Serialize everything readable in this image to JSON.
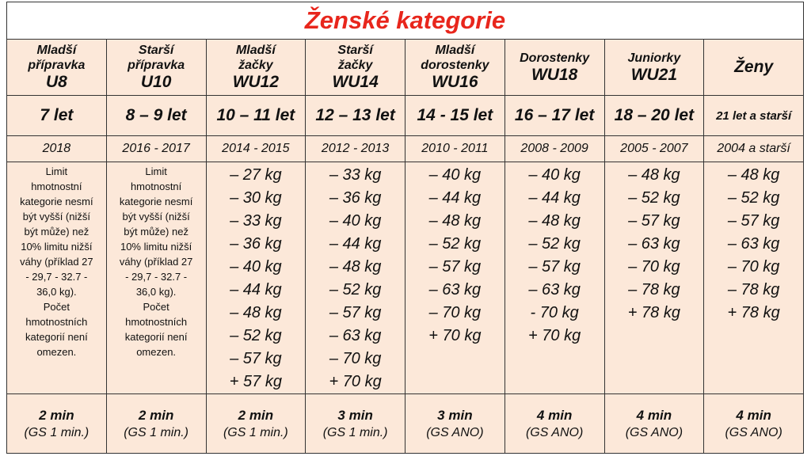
{
  "title": "Ženské kategorie",
  "columns": [
    {
      "header": [
        "Mladší",
        "přípravka",
        "U8"
      ],
      "age": "7 let",
      "years": "2018",
      "note": [
        "Limit",
        "hmotnostní",
        "kategorie nesmí",
        "být vyšší (nižší",
        "být může) než",
        "10% limitu nižší",
        "váhy (příklad 27",
        "- 29,7 - 32.7 -",
        "36,0 kg).",
        "Počet",
        "hmotnostních",
        "kategorií není",
        "omezen."
      ],
      "time": "2 min",
      "gs": "(GS 1 min.)"
    },
    {
      "header": [
        "Starší",
        "přípravka",
        "U10"
      ],
      "age": "8 – 9 let",
      "years": "2016 - 2017",
      "note": [
        "Limit",
        "hmotnostní",
        "kategorie nesmí",
        "být vyšší (nižší",
        "být může) než",
        "10% limitu nižší",
        "váhy (příklad 27",
        "- 29,7 - 32.7 -",
        "36,0 kg).",
        "Počet",
        "hmotnostních",
        "kategorií není",
        "omezen."
      ],
      "time": "2 min",
      "gs": "(GS 1 min.)"
    },
    {
      "header": [
        "Mladší",
        "žačky",
        "WU12"
      ],
      "age": "10 – 11 let",
      "years": "2014 - 2015",
      "weights": [
        "– 27 kg",
        "– 30 kg",
        "– 33 kg",
        "– 36 kg",
        "– 40 kg",
        "– 44 kg",
        "– 48 kg",
        "– 52 kg",
        "– 57 kg",
        "+ 57 kg"
      ],
      "time": "2 min",
      "gs": "(GS 1 min.)"
    },
    {
      "header": [
        "Starší",
        "žačky",
        "WU14"
      ],
      "age": "12 – 13 let",
      "years": "2012 - 2013",
      "weights": [
        "– 33 kg",
        "– 36 kg",
        "– 40 kg",
        "– 44 kg",
        "– 48 kg",
        "– 52 kg",
        "– 57 kg",
        "– 63 kg",
        "– 70 kg",
        "+ 70 kg"
      ],
      "time": "3 min",
      "gs": "(GS 1 min.)"
    },
    {
      "header": [
        "Mladší",
        "dorostenky",
        "WU16"
      ],
      "age": "14 - 15 let",
      "years": "2010 - 2011",
      "weights": [
        "– 40 kg",
        "– 44 kg",
        "– 48 kg",
        "– 52 kg",
        "– 57 kg",
        "– 63 kg",
        "– 70 kg",
        "+ 70 kg"
      ],
      "time": "3 min",
      "gs": "(GS ANO)"
    },
    {
      "header": [
        "Dorostenky",
        "WU18"
      ],
      "age": "16 – 17 let",
      "years": "2008 - 2009",
      "weights": [
        "– 40 kg",
        "– 44 kg",
        "– 48 kg",
        "– 52 kg",
        "– 57 kg",
        "– 63 kg",
        "- 70 kg",
        "+ 70 kg"
      ],
      "time": "4 min",
      "gs": "(GS ANO)"
    },
    {
      "header": [
        "Juniorky",
        "WU21"
      ],
      "age": "18 – 20 let",
      "years": "2005 - 2007",
      "weights": [
        "– 48 kg",
        "– 52 kg",
        "– 57 kg",
        "– 63 kg",
        "– 70 kg",
        "– 78 kg",
        "+ 78 kg"
      ],
      "time": "4 min",
      "gs": "(GS ANO)"
    },
    {
      "header": [
        "Ženy"
      ],
      "age": "21 let a starší",
      "years": "2004 a starší",
      "weights": [
        "– 48 kg",
        "– 52 kg",
        "– 57 kg",
        "– 63 kg",
        "– 70 kg",
        "– 78 kg",
        "+ 78 kg"
      ],
      "time": "4 min",
      "gs": "(GS ANO)"
    }
  ]
}
